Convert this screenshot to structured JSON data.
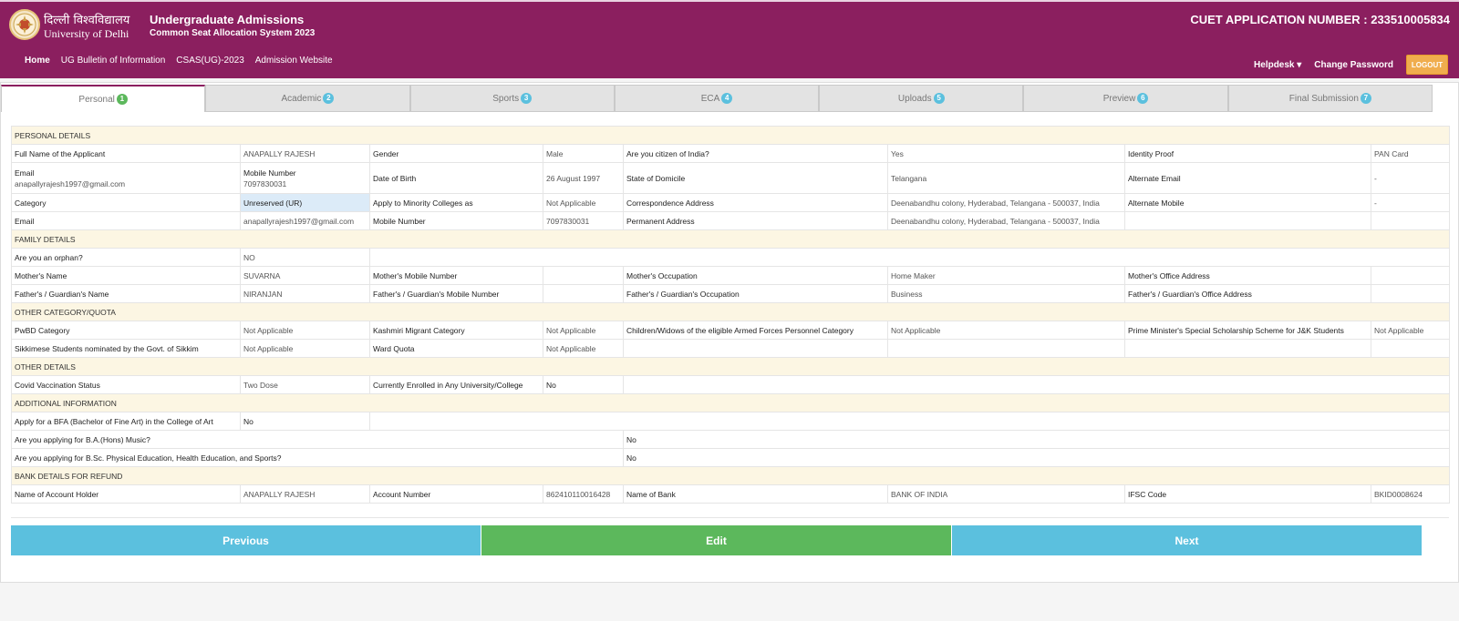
{
  "header": {
    "university_hindi": "दिल्ली विश्वविद्यालय",
    "university_english": "University of Delhi",
    "app_title": "Undergraduate Admissions",
    "app_subtitle": "Common Seat Allocation System 2023",
    "application_number": "CUET APPLICATION NUMBER : 233510005834"
  },
  "nav": {
    "items": [
      "Home",
      "UG Bulletin of Information",
      "CSAS(UG)-2023",
      "Admission Website"
    ],
    "helpdesk": "Helpdesk ▾",
    "change_password": "Change Password",
    "logout": "LOGOUT"
  },
  "tabs": [
    {
      "label": "Personal",
      "num": "1"
    },
    {
      "label": "Academic",
      "num": "2"
    },
    {
      "label": "Sports",
      "num": "3"
    },
    {
      "label": "ECA",
      "num": "4"
    },
    {
      "label": "Uploads",
      "num": "5"
    },
    {
      "label": "Preview",
      "num": "6"
    },
    {
      "label": "Final Submission",
      "num": "7"
    }
  ],
  "sections": {
    "personal": "PERSONAL DETAILS",
    "family": "FAMILY DETAILS",
    "other_category": "OTHER CATEGORY/QUOTA",
    "other_details": "OTHER DETAILS",
    "additional": "ADDITIONAL INFORMATION",
    "bank": "BANK DETAILS FOR REFUND"
  },
  "personal": {
    "full_name_label": "Full Name of the Applicant",
    "full_name": "ANAPALLY RAJESH",
    "gender_label": "Gender",
    "gender": "Male",
    "citizen_label": "Are you citizen of India?",
    "citizen": "Yes",
    "identity_label": "Identity Proof",
    "identity": "PAN Card",
    "email_label": "Email",
    "email_inline": "anapallyrajesh1997@gmail.com",
    "mobile_label": "Mobile Number",
    "mobile_inline": "7097830031",
    "dob_label": "Date of Birth",
    "dob": "26 August 1997",
    "domicile_label": "State of Domicile",
    "domicile": "Telangana",
    "alt_email_label": "Alternate Email",
    "alt_email": "-",
    "category_label": "Category",
    "category": "Unreserved (UR)",
    "minority_label": "Apply to Minority Colleges as",
    "minority": "Not Applicable",
    "corr_addr_label": "Correspondence Address",
    "corr_addr": "Deenabandhu colony, Hyderabad, Telangana - 500037, India",
    "alt_mobile_label": "Alternate Mobile",
    "alt_mobile": "-",
    "email2_label": "Email",
    "email2": "anapallyrajesh1997@gmail.com",
    "mobile2_label": "Mobile Number",
    "mobile2": "7097830031",
    "perm_addr_label": "Permanent Address",
    "perm_addr": "Deenabandhu colony, Hyderabad, Telangana - 500037, India"
  },
  "family": {
    "orphan_label": "Are you an orphan?",
    "orphan": "NO",
    "mother_name_label": "Mother's Name",
    "mother_name": "SUVARNA",
    "mother_mobile_label": "Mother's Mobile Number",
    "mother_occ_label": "Mother's Occupation",
    "mother_occ": "Home Maker",
    "mother_office_label": "Mother's Office Address",
    "father_name_label": "Father's / Guardian's Name",
    "father_name": "NIRANJAN",
    "father_mobile_label": "Father's / Guardian's Mobile Number",
    "father_occ_label": "Father's / Guardian's Occupation",
    "father_occ": "Business",
    "father_office_label": "Father's / Guardian's Office Address"
  },
  "other_category": {
    "pwbd_label": "PwBD Category",
    "pwbd": "Not Applicable",
    "kashmiri_label": "Kashmiri Migrant Category",
    "kashmiri": "Not Applicable",
    "armed_label": "Children/Widows of the eligible Armed Forces Personnel Category",
    "armed": "Not Applicable",
    "pm_label": "Prime Minister's Special Scholarship Scheme for J&K Students",
    "pm": "Not Applicable",
    "sikkim_label": "Sikkimese Students nominated by the Govt. of Sikkim",
    "sikkim": "Not Applicable",
    "ward_label": "Ward Quota",
    "ward": "Not Applicable"
  },
  "other_details": {
    "covid_label": "Covid Vaccination Status",
    "covid": "Two Dose",
    "enrolled_label": "Currently Enrolled in Any University/College",
    "enrolled": "No"
  },
  "additional": {
    "bfa_label": "Apply for a BFA (Bachelor of Fine Art) in the College of Art",
    "bfa": "No",
    "music_label": "Are you applying for B.A.(Hons) Music?",
    "music": "No",
    "bsc_label": "Are you applying for B.Sc. Physical Education, Health Education, and Sports?",
    "bsc": "No"
  },
  "bank": {
    "holder_label": "Name of Account Holder",
    "holder": "ANAPALLY RAJESH",
    "account_label": "Account Number",
    "account": "862410110016428",
    "bank_label": "Name of Bank",
    "bank": "BANK OF INDIA",
    "ifsc_label": "IFSC Code",
    "ifsc": "BKID0008624"
  },
  "actions": {
    "previous": "Previous",
    "edit": "Edit",
    "next": "Next"
  },
  "colors": {
    "header_bg": "#8b1f5f",
    "section_bg": "#fcf6e3",
    "btn_blue": "#5bc0de",
    "btn_green": "#5cb85c",
    "logout_bg": "#f0ad4e"
  }
}
